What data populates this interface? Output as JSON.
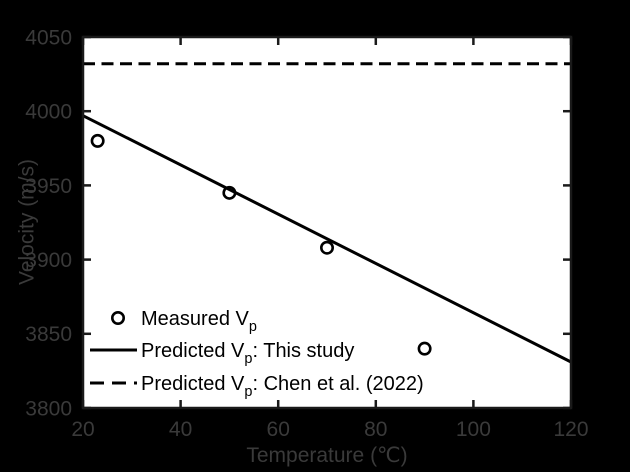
{
  "figure": {
    "background": "#000000",
    "plot_background": "#ffffff",
    "axis_color": "#1a1a1a",
    "data_color": "#000000",
    "label_color": "#3a3a3a"
  },
  "chart_data": {
    "type": "line+scatter",
    "title": "",
    "xlabel": "Temperature (℃)",
    "ylabel": "Velocity (m/s)",
    "xlim": [
      20,
      120
    ],
    "ylim": [
      3800,
      4050
    ],
    "xticks": [
      20,
      40,
      60,
      80,
      100,
      120
    ],
    "yticks": [
      3800,
      3850,
      3900,
      3950,
      4000,
      4050
    ],
    "grid": false,
    "legend_position": "inside-lower-left",
    "series": [
      {
        "id": "measured-vp",
        "name": "Measured Vp",
        "type": "scatter",
        "marker": "open-circle",
        "x": [
          23,
          50,
          70,
          90
        ],
        "y": [
          3980,
          3945,
          3908,
          3840
        ],
        "legend": {
          "prefix": "Measured V",
          "sub": "p",
          "suffix": ""
        }
      },
      {
        "id": "predicted-this-study",
        "name": "Predicted Vp: This study",
        "type": "line",
        "style": "solid",
        "x": [
          20,
          120
        ],
        "y": [
          3997,
          3831
        ],
        "legend": {
          "prefix": "Predicted V",
          "sub": "p",
          "suffix": ": This study"
        }
      },
      {
        "id": "predicted-chen-2022",
        "name": "Predicted Vp: Chen et al. (2022)",
        "type": "line",
        "style": "dashed",
        "x": [
          20,
          120
        ],
        "y": [
          4032,
          4032
        ],
        "legend": {
          "prefix": "Predicted V",
          "sub": "p",
          "suffix": ": Chen et al. (2022)"
        }
      }
    ]
  }
}
